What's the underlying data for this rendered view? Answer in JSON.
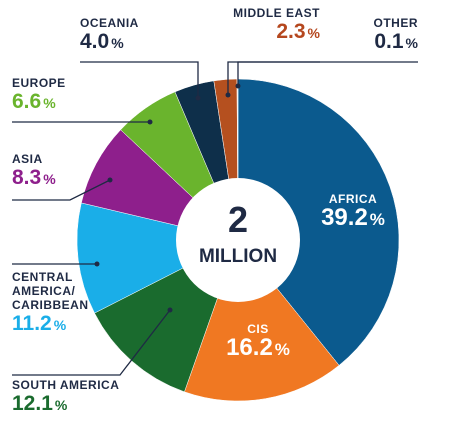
{
  "chart_data": {
    "type": "donut",
    "center_value": "2",
    "center_label": "MILLION",
    "categories": [
      "AFRICA",
      "CIS",
      "SOUTH AMERICA",
      "CENTRAL\nAMERICA/\nCARIBBEAN",
      "ASIA",
      "EUROPE",
      "OCEANIA",
      "MIDDLE EAST",
      "OTHER"
    ],
    "values": [
      39.2,
      16.2,
      12.1,
      11.2,
      8.3,
      6.6,
      4.0,
      2.3,
      0.1
    ],
    "value_labels": [
      "39.2",
      "16.2",
      "12.1",
      "11.2",
      "8.3",
      "6.6",
      "4.0",
      "2.3",
      "0.1"
    ],
    "value_label_unit": "%",
    "colors": [
      "#0b5a8e",
      "#f07822",
      "#1a6b2e",
      "#1aaee8",
      "#8e1f8c",
      "#6ab42d",
      "#0e2f4a",
      "#b5501f",
      "#e6e6e6"
    ],
    "label_colors": [
      "#ffffff",
      "#ffffff",
      "#1a6b2e",
      "#1aaee8",
      "#8e1f8c",
      "#6ab42d",
      "#1f2a44",
      "#b5471e",
      "#1f2a44"
    ]
  }
}
